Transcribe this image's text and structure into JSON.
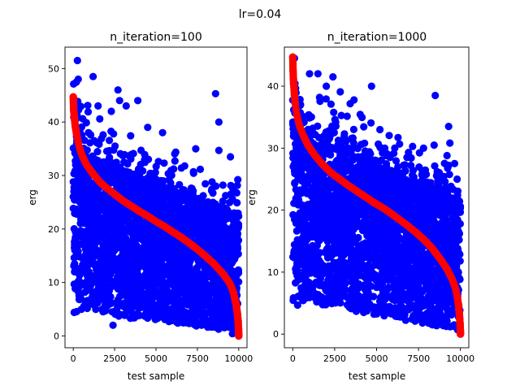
{
  "suptitle": "lr=0.04",
  "colors": {
    "scatter": "#0000ff",
    "curve": "#ff0000",
    "axes": "#000000",
    "background": "#ffffff"
  },
  "chart_data": [
    {
      "type": "scatter",
      "title": "n_iteration=100",
      "xlabel": "test sample",
      "ylabel": "erg",
      "xlim": [
        -500,
        10500
      ],
      "ylim": [
        -2.2,
        54
      ],
      "xticks": [
        0,
        2500,
        5000,
        7500,
        10000
      ],
      "xtick_labels": [
        "0",
        "2500",
        "5000",
        "7500",
        "10000"
      ],
      "yticks": [
        0,
        10,
        20,
        30,
        40,
        50
      ],
      "ytick_labels": [
        "0",
        "10",
        "20",
        "30",
        "40",
        "50"
      ],
      "grid": false,
      "series": [
        {
          "role": "points",
          "color": "#0000ff",
          "n_points": 10000,
          "envelope": {
            "x": [
              0,
              500,
              1000,
              2000,
              3000,
              4000,
              5000,
              6000,
              7000,
              8000,
              9000,
              10000
            ],
            "y_low": [
              3,
              4,
              4,
              4,
              3.5,
              3,
              3,
              2.5,
              2,
              1.5,
              1,
              0
            ],
            "y_high_typical": [
              44,
              37,
              34,
              32,
              31,
              30,
              29,
              27,
              26,
              24.5,
              24,
              23
            ]
          },
          "outliers": [
            [
              250,
              51.5
            ],
            [
              300,
              48
            ],
            [
              1200,
              48.5
            ],
            [
              2700,
              46
            ],
            [
              2800,
              44
            ],
            [
              2300,
              42
            ],
            [
              3900,
              44
            ],
            [
              3200,
              43
            ],
            [
              1500,
              43
            ],
            [
              8600,
              45.3
            ],
            [
              8800,
              40
            ],
            [
              8800,
              34.7
            ],
            [
              9500,
              33.5
            ],
            [
              7400,
              35
            ],
            [
              5400,
              38
            ],
            [
              4500,
              39
            ],
            [
              2400,
              2
            ]
          ]
        },
        {
          "role": "sorted-curve",
          "color": "#ff0000",
          "x": [
            0,
            20,
            60,
            120,
            200,
            350,
            500,
            800,
            1200,
            1600,
            2000,
            2500,
            3000,
            3500,
            4000,
            4500,
            5000,
            5500,
            6000,
            6500,
            7000,
            7500,
            8000,
            8500,
            9000,
            9300,
            9500,
            9650,
            9750,
            9850,
            9920,
            9960,
            9990,
            10000
          ],
          "y": [
            44.7,
            42.5,
            41.0,
            39.2,
            37.8,
            35.5,
            34.0,
            32.0,
            30.3,
            28.8,
            27.7,
            26.5,
            25.3,
            24.3,
            23.3,
            22.4,
            21.4,
            20.5,
            19.5,
            18.5,
            17.4,
            16.2,
            14.9,
            13.5,
            11.8,
            10.6,
            9.6,
            8.4,
            7.2,
            5.8,
            4.2,
            2.8,
            1.2,
            0
          ]
        }
      ]
    },
    {
      "type": "scatter",
      "title": "n_iteration=1000",
      "xlabel": "test sample",
      "ylabel": "erg",
      "xlim": [
        -500,
        10500
      ],
      "ylim": [
        -2.2,
        46.3
      ],
      "xticks": [
        0,
        2500,
        5000,
        7500,
        10000
      ],
      "xtick_labels": [
        "0",
        "2500",
        "5000",
        "7500",
        "10000"
      ],
      "yticks": [
        0,
        10,
        20,
        30,
        40
      ],
      "ytick_labels": [
        "0",
        "10",
        "20",
        "30",
        "40"
      ],
      "grid": false,
      "series": [
        {
          "role": "points",
          "color": "#0000ff",
          "n_points": 10000,
          "envelope": {
            "x": [
              0,
              500,
              1000,
              2000,
              3000,
              4000,
              5000,
              6000,
              7000,
              8000,
              9000,
              10000
            ],
            "y_low": [
              4,
              5,
              5,
              4.5,
              4,
              3.5,
              3,
              2.5,
              2,
              1.5,
              1,
              0
            ],
            "y_high_typical": [
              40,
              35,
              33,
              31,
              30,
              29,
              28,
              26.5,
              25,
              24,
              23,
              22
            ]
          },
          "outliers": [
            [
              100,
              44.5
            ],
            [
              1000,
              42
            ],
            [
              1500,
              42
            ],
            [
              2000,
              40
            ],
            [
              2400,
              41.5
            ],
            [
              4700,
              40
            ],
            [
              8500,
              38.5
            ],
            [
              9300,
              33.5
            ],
            [
              9200,
              28.8
            ],
            [
              9800,
              25
            ],
            [
              7800,
              30
            ],
            [
              5200,
              33
            ]
          ]
        },
        {
          "role": "sorted-curve",
          "color": "#ff0000",
          "x": [
            0,
            20,
            50,
            100,
            150,
            250,
            400,
            600,
            900,
            1300,
            1800,
            2300,
            2800,
            3300,
            3800,
            4300,
            4800,
            5300,
            5800,
            6300,
            6800,
            7300,
            7800,
            8300,
            8800,
            9200,
            9500,
            9700,
            9800,
            9880,
            9940,
            9975,
            9995,
            10000
          ],
          "y": [
            44.7,
            42.5,
            40.5,
            38.6,
            37.2,
            35.3,
            33.6,
            32.2,
            30.5,
            28.9,
            27.3,
            26.0,
            25.0,
            24.0,
            23.1,
            22.2,
            21.3,
            20.5,
            19.6,
            18.6,
            17.6,
            16.5,
            15.3,
            13.9,
            12.1,
            10.5,
            8.9,
            7.4,
            6.2,
            4.8,
            3.2,
            1.8,
            0.6,
            0
          ]
        }
      ]
    }
  ]
}
